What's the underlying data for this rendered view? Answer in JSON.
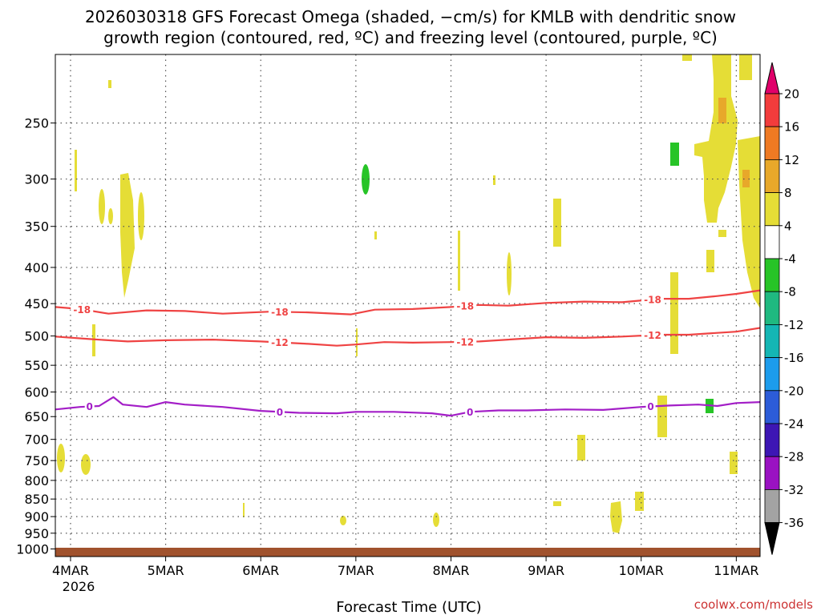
{
  "chart_data": {
    "type": "heatmap",
    "title_line1": "2026030318 GFS Forecast Omega (shaded, −cm/s) for KMLB with dendritic snow",
    "title_line2": "growth region (contoured, red, ºC) and freezing level (contoured, purple, ºC)",
    "xlabel": "Forecast Time (UTC)",
    "credit": "coolwx.com/models",
    "x_ticks": [
      "4MAR",
      "5MAR",
      "6MAR",
      "7MAR",
      "8MAR",
      "9MAR",
      "10MAR",
      "11MAR"
    ],
    "x_year": "2026",
    "x_range_days": [
      -0.16,
      7.25
    ],
    "y_ticks": [
      250,
      300,
      350,
      400,
      450,
      500,
      550,
      600,
      650,
      700,
      750,
      800,
      850,
      900,
      950,
      1000
    ],
    "y_range_hpa": [
      200,
      1025
    ],
    "colorbar": {
      "labels": [
        "20",
        "16",
        "12",
        "8",
        "4",
        "-4",
        "-8",
        "-12",
        "-16",
        "-20",
        "-24",
        "-28",
        "-32",
        "-36"
      ],
      "top_color": "#e0006a",
      "bottom_color": "#000000",
      "colors": [
        "#f23c3c",
        "#ef7a23",
        "#e8a82a",
        "#e5dd36",
        "#ffffff",
        "#27c427",
        "#1fb980",
        "#14b6b4",
        "#1c9cec",
        "#2c5cd8",
        "#3d16b4",
        "#9a12c2",
        "#a3a3a3"
      ]
    },
    "contours": [
      {
        "label": "-18",
        "color": "#ef4343",
        "x": [
          -0.16,
          0.1,
          0.4,
          0.8,
          1.2,
          1.6,
          2.1,
          2.5,
          2.95,
          3.2,
          3.6,
          4.0,
          4.3,
          4.6,
          5.0,
          5.4,
          5.8,
          6.2,
          6.5,
          6.8,
          7.0,
          7.25
        ],
        "p": [
          455,
          458,
          465,
          460,
          461,
          465,
          462,
          463,
          466,
          459,
          458,
          455,
          452,
          453,
          449,
          447,
          448,
          443,
          443,
          439,
          436,
          431
        ],
        "label_x": [
          0.12,
          2.2,
          4.15,
          6.12
        ]
      },
      {
        "label": "-12",
        "color": "#ef4343",
        "x": [
          -0.16,
          0.2,
          0.6,
          1.0,
          1.5,
          2.0,
          2.5,
          2.8,
          3.0,
          3.3,
          3.6,
          4.0,
          4.3,
          4.6,
          5.0,
          5.4,
          5.8,
          6.2,
          6.5,
          6.8,
          7.0,
          7.25
        ],
        "p": [
          501,
          505,
          509,
          507,
          506,
          509,
          513,
          516,
          514,
          510,
          511,
          510,
          509,
          506,
          502,
          503,
          501,
          498,
          498,
          495,
          493,
          487
        ],
        "label_x": [
          2.2,
          4.15,
          6.12
        ]
      },
      {
        "label": "0",
        "color": "#a31ec7",
        "x": [
          -0.16,
          0.1,
          0.3,
          0.45,
          0.55,
          0.8,
          1.0,
          1.2,
          1.6,
          2.0,
          2.4,
          2.8,
          3.0,
          3.4,
          3.8,
          4.0,
          4.2,
          4.5,
          4.8,
          5.2,
          5.6,
          6.0,
          6.3,
          6.6,
          6.8,
          7.0,
          7.25
        ],
        "p": [
          635,
          630,
          628,
          610,
          625,
          630,
          620,
          625,
          630,
          638,
          642,
          643,
          640,
          640,
          643,
          648,
          640,
          637,
          637,
          635,
          636,
          630,
          627,
          625,
          628,
          622,
          620
        ],
        "label_x": [
          0.2,
          2.2,
          4.2,
          6.1
        ]
      }
    ],
    "shaded_regions": [
      {
        "value_class": "4-8 (yellow)",
        "count": 27
      },
      {
        "value_class": "8-12 (orange)",
        "count": 2
      },
      {
        "value_class": "-4 to -8 (green)",
        "count": 3
      }
    ]
  }
}
